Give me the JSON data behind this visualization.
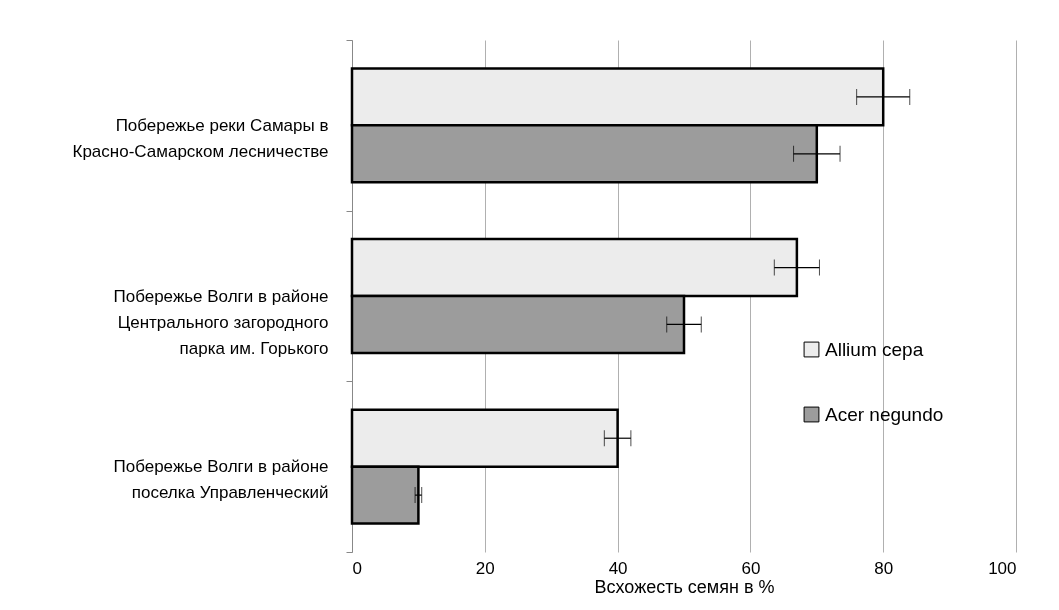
{
  "chart_data": {
    "type": "bar",
    "orientation": "horizontal",
    "xlabel": "Всхожесть семян в %",
    "categories": [
      "Побережье реки Самары в Красно-Самарском лесничестве",
      "Побережье Волги в районе Центрального загородного парка им. Горького",
      "Побережье Волги в районе поселка Управленческий"
    ],
    "series": [
      {
        "name": "Allium cepa",
        "color": "#ececec",
        "values": [
          80,
          67,
          40
        ],
        "errors": [
          4,
          3.4,
          2
        ]
      },
      {
        "name": "Acer negundo",
        "color": "#9c9c9c",
        "values": [
          70,
          50,
          10
        ],
        "errors": [
          3.5,
          2.6,
          0.5
        ]
      }
    ],
    "xlim": [
      0,
      100
    ],
    "xticks": [
      0,
      20,
      40,
      60,
      80,
      100
    ],
    "grid": "x",
    "legend": "right"
  }
}
